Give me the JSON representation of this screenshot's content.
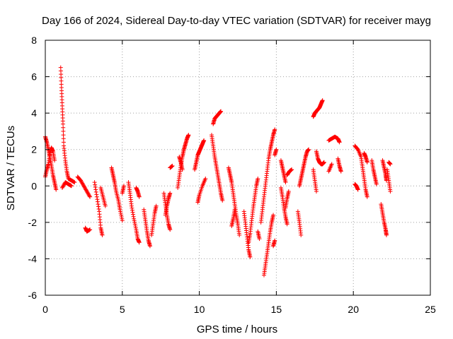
{
  "chart_data": {
    "type": "scatter",
    "title": "Day 166 of 2024, Sidereal Day-to-day VTEC variation (SDTVAR) for receiver mayg",
    "xlabel": "GPS time / hours",
    "ylabel": "SDTVAR / TECUs",
    "xlim": [
      0,
      25
    ],
    "ylim": [
      -6,
      8
    ],
    "xticks": [
      0,
      5,
      10,
      15,
      20,
      25
    ],
    "yticks": [
      -6,
      -4,
      -2,
      0,
      2,
      4,
      6,
      8
    ],
    "grid": true,
    "marker": "+",
    "color": "#ff0000",
    "series": [
      {
        "name": "SDTVAR",
        "segments": [
          [
            [
              0.0,
              2.7
            ],
            [
              0.1,
              2.4
            ],
            [
              0.2,
              2.0
            ],
            [
              0.3,
              1.6
            ],
            [
              0.4,
              1.1
            ],
            [
              0.5,
              0.6
            ],
            [
              0.6,
              0.2
            ],
            [
              0.7,
              -0.2
            ]
          ],
          [
            [
              0.0,
              0.5
            ],
            [
              0.1,
              0.9
            ],
            [
              0.2,
              1.2
            ],
            [
              0.3,
              1.8
            ],
            [
              0.4,
              2.1
            ],
            [
              0.5,
              1.9
            ],
            [
              0.6,
              1.4
            ]
          ],
          [
            [
              1.0,
              6.5
            ],
            [
              1.05,
              5.4
            ],
            [
              1.1,
              4.4
            ],
            [
              1.15,
              3.4
            ],
            [
              1.2,
              2.2
            ],
            [
              1.3,
              1.4
            ],
            [
              1.4,
              0.8
            ],
            [
              1.5,
              0.4
            ],
            [
              1.7,
              0.3
            ],
            [
              1.9,
              0.2
            ]
          ],
          [
            [
              1.1,
              -0.1
            ],
            [
              1.3,
              0.2
            ],
            [
              1.5,
              0.1
            ],
            [
              1.7,
              0.0
            ]
          ],
          [
            [
              2.1,
              0.5
            ],
            [
              2.3,
              0.3
            ],
            [
              2.5,
              0.0
            ],
            [
              2.7,
              -0.3
            ],
            [
              2.9,
              -0.6
            ]
          ],
          [
            [
              2.6,
              -2.3
            ],
            [
              2.7,
              -2.5
            ],
            [
              2.9,
              -2.4
            ]
          ],
          [
            [
              3.2,
              0.2
            ],
            [
              3.35,
              -0.6
            ],
            [
              3.5,
              -1.4
            ],
            [
              3.6,
              -2.3
            ],
            [
              3.7,
              -2.7
            ]
          ],
          [
            [
              3.6,
              -0.1
            ],
            [
              3.75,
              -0.6
            ],
            [
              3.9,
              -1.1
            ]
          ],
          [
            [
              4.3,
              1.0
            ],
            [
              4.4,
              0.6
            ],
            [
              4.5,
              0.2
            ],
            [
              4.6,
              -0.3
            ],
            [
              4.75,
              -0.8
            ],
            [
              4.85,
              -1.3
            ],
            [
              5.0,
              -1.9
            ]
          ],
          [
            [
              5.0,
              -0.4
            ],
            [
              5.1,
              0.0
            ]
          ],
          [
            [
              5.4,
              0.2
            ],
            [
              5.5,
              -0.4
            ],
            [
              5.6,
              -1.1
            ],
            [
              5.75,
              -1.8
            ],
            [
              5.9,
              -2.4
            ],
            [
              6.0,
              -2.9
            ],
            [
              6.1,
              -3.1
            ]
          ],
          [
            [
              5.9,
              -0.1
            ],
            [
              6.0,
              -0.3
            ],
            [
              6.1,
              -0.6
            ]
          ],
          [
            [
              6.4,
              -1.3
            ],
            [
              6.5,
              -1.9
            ],
            [
              6.6,
              -2.5
            ],
            [
              6.7,
              -3.0
            ],
            [
              6.8,
              -3.3
            ]
          ],
          [
            [
              6.9,
              -2.7
            ],
            [
              7.0,
              -2.1
            ],
            [
              7.1,
              -1.5
            ],
            [
              7.2,
              -1.1
            ]
          ],
          [
            [
              7.7,
              -0.4
            ],
            [
              7.8,
              -1.0
            ],
            [
              7.9,
              -1.6
            ],
            [
              8.0,
              -2.1
            ],
            [
              8.1,
              -2.4
            ]
          ],
          [
            [
              7.8,
              -1.6
            ],
            [
              7.9,
              -1.1
            ],
            [
              8.0,
              -0.7
            ],
            [
              8.1,
              -0.4
            ]
          ],
          [
            [
              8.1,
              1.0
            ],
            [
              8.25,
              1.1
            ]
          ],
          [
            [
              8.6,
              -0.1
            ],
            [
              8.7,
              0.5
            ],
            [
              8.8,
              1.1
            ],
            [
              8.9,
              1.6
            ],
            [
              9.0,
              2.0
            ],
            [
              9.1,
              2.3
            ],
            [
              9.2,
              2.6
            ],
            [
              9.3,
              2.8
            ]
          ],
          [
            [
              8.7,
              1.6
            ],
            [
              8.8,
              1.3
            ],
            [
              8.9,
              0.9
            ]
          ],
          [
            [
              9.7,
              0.9
            ],
            [
              9.8,
              1.3
            ],
            [
              9.9,
              1.7
            ],
            [
              10.0,
              1.9
            ],
            [
              10.1,
              2.1
            ],
            [
              10.2,
              2.3
            ],
            [
              10.3,
              2.5
            ]
          ],
          [
            [
              9.9,
              -0.9
            ],
            [
              10.0,
              -0.5
            ],
            [
              10.2,
              0.0
            ],
            [
              10.4,
              0.4
            ]
          ],
          [
            [
              10.8,
              2.8
            ],
            [
              10.9,
              2.2
            ],
            [
              11.0,
              1.6
            ],
            [
              11.1,
              1.1
            ],
            [
              11.2,
              0.6
            ],
            [
              11.3,
              0.1
            ],
            [
              11.4,
              -0.4
            ],
            [
              11.5,
              -0.8
            ]
          ],
          [
            [
              10.9,
              3.4
            ],
            [
              11.0,
              3.7
            ],
            [
              11.1,
              3.8
            ],
            [
              11.2,
              3.9
            ],
            [
              11.3,
              4.0
            ],
            [
              11.4,
              4.1
            ]
          ],
          [
            [
              11.9,
              1.0
            ],
            [
              12.0,
              0.6
            ],
            [
              12.1,
              0.2
            ],
            [
              12.2,
              -0.4
            ],
            [
              12.3,
              -1.0
            ],
            [
              12.4,
              -1.6
            ],
            [
              12.5,
              -2.1
            ],
            [
              12.6,
              -2.7
            ]
          ],
          [
            [
              12.1,
              -2.2
            ],
            [
              12.2,
              -1.8
            ],
            [
              12.3,
              -1.3
            ]
          ],
          [
            [
              12.9,
              -1.4
            ],
            [
              13.0,
              -2.1
            ],
            [
              13.1,
              -2.8
            ],
            [
              13.2,
              -3.5
            ],
            [
              13.3,
              -3.9
            ]
          ],
          [
            [
              13.2,
              -3.1
            ],
            [
              13.3,
              -2.6
            ],
            [
              13.4,
              -1.9
            ],
            [
              13.5,
              -1.2
            ],
            [
              13.6,
              -0.6
            ],
            [
              13.7,
              0.0
            ],
            [
              13.8,
              0.4
            ]
          ],
          [
            [
              13.8,
              -2.5
            ],
            [
              13.9,
              -2.9
            ]
          ],
          [
            [
              14.0,
              -2.0
            ],
            [
              14.1,
              -1.3
            ],
            [
              14.2,
              -0.6
            ],
            [
              14.3,
              0.1
            ],
            [
              14.4,
              0.8
            ],
            [
              14.5,
              1.5
            ],
            [
              14.6,
              2.0
            ],
            [
              14.7,
              2.4
            ],
            [
              14.8,
              2.8
            ],
            [
              14.9,
              3.1
            ]
          ],
          [
            [
              14.2,
              -4.9
            ],
            [
              14.3,
              -4.3
            ],
            [
              14.4,
              -3.7
            ],
            [
              14.5,
              -3.1
            ],
            [
              14.6,
              -2.5
            ],
            [
              14.7,
              -2.0
            ],
            [
              14.8,
              -1.6
            ]
          ],
          [
            [
              14.8,
              -3.3
            ],
            [
              14.9,
              -3.0
            ]
          ],
          [
            [
              14.9,
              1.7
            ],
            [
              15.0,
              2.0
            ]
          ],
          [
            [
              15.3,
              -0.1
            ],
            [
              15.4,
              -0.6
            ],
            [
              15.5,
              -1.2
            ],
            [
              15.6,
              -1.7
            ],
            [
              15.7,
              -2.1
            ]
          ],
          [
            [
              15.6,
              -1.2
            ],
            [
              15.7,
              -0.7
            ],
            [
              15.8,
              -0.3
            ]
          ],
          [
            [
              15.3,
              1.4
            ],
            [
              15.4,
              1.0
            ],
            [
              15.5,
              0.6
            ],
            [
              15.6,
              0.2
            ]
          ],
          [
            [
              15.7,
              0.6
            ],
            [
              15.85,
              0.8
            ],
            [
              16.0,
              0.9
            ]
          ],
          [
            [
              16.4,
              -1.4
            ],
            [
              16.5,
              -2.0
            ],
            [
              16.6,
              -2.7
            ]
          ],
          [
            [
              16.5,
              0.0
            ],
            [
              16.6,
              0.4
            ],
            [
              16.7,
              0.8
            ],
            [
              16.8,
              1.2
            ],
            [
              16.9,
              1.6
            ],
            [
              17.0,
              1.9
            ],
            [
              17.1,
              2.0
            ]
          ],
          [
            [
              17.4,
              0.9
            ],
            [
              17.5,
              0.3
            ],
            [
              17.6,
              -0.3
            ]
          ],
          [
            [
              17.4,
              3.8
            ],
            [
              17.5,
              4.0
            ],
            [
              17.6,
              4.1
            ],
            [
              17.7,
              4.2
            ],
            [
              17.8,
              4.3
            ],
            [
              17.9,
              4.5
            ],
            [
              18.0,
              4.7
            ]
          ],
          [
            [
              17.6,
              1.9
            ],
            [
              17.7,
              1.5
            ],
            [
              17.8,
              1.3
            ],
            [
              17.9,
              1.2
            ],
            [
              18.0,
              1.2
            ],
            [
              18.1,
              1.3
            ]
          ],
          [
            [
              18.4,
              0.8
            ],
            [
              18.6,
              1.2
            ]
          ],
          [
            [
              18.4,
              2.5
            ],
            [
              18.6,
              2.6
            ],
            [
              18.8,
              2.7
            ],
            [
              19.0,
              2.6
            ],
            [
              19.1,
              2.4
            ]
          ],
          [
            [
              19.0,
              1.5
            ],
            [
              19.1,
              1.1
            ],
            [
              19.2,
              0.8
            ]
          ],
          [
            [
              20.1,
              0.1
            ],
            [
              20.2,
              0.0
            ],
            [
              20.3,
              -0.2
            ]
          ],
          [
            [
              20.1,
              2.2
            ],
            [
              20.3,
              2.0
            ],
            [
              20.5,
              1.6
            ],
            [
              20.6,
              1.0
            ],
            [
              20.7,
              0.4
            ],
            [
              20.8,
              -0.2
            ],
            [
              20.9,
              -0.6
            ]
          ],
          [
            [
              20.7,
              1.8
            ],
            [
              20.8,
              1.6
            ],
            [
              20.9,
              1.3
            ]
          ],
          [
            [
              21.2,
              1.4
            ],
            [
              21.3,
              0.9
            ],
            [
              21.4,
              0.5
            ],
            [
              21.5,
              0.1
            ]
          ],
          [
            [
              21.9,
              1.4
            ],
            [
              22.0,
              1.0
            ],
            [
              22.1,
              0.6
            ],
            [
              22.15,
              0.3
            ]
          ],
          [
            [
              21.8,
              -1.0
            ],
            [
              21.9,
              -1.5
            ],
            [
              22.0,
              -2.0
            ],
            [
              22.1,
              -2.4
            ],
            [
              22.15,
              -2.7
            ]
          ],
          [
            [
              22.2,
              0.9
            ],
            [
              22.3,
              0.3
            ],
            [
              22.4,
              -0.3
            ]
          ],
          [
            [
              22.3,
              1.3
            ],
            [
              22.4,
              1.2
            ]
          ]
        ]
      }
    ]
  }
}
